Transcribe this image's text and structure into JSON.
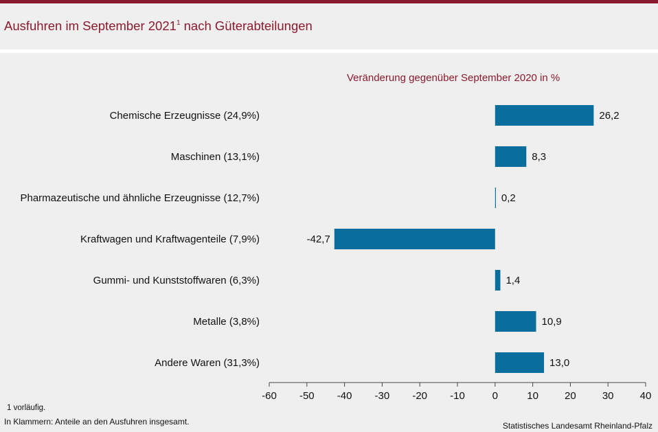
{
  "header": {
    "title": "Ausfuhren im September 2021",
    "title_footnote_mark": "1",
    "title_suffix": "nach Güterabteilungen"
  },
  "colors": {
    "accent": "#8b1a2e",
    "bar": "#0a6e9c"
  },
  "chart_data": {
    "type": "bar",
    "orientation": "horizontal",
    "subtitle": "Veränderung  gegenüber  September 2020 in %",
    "categories": [
      "Chemische Erzeugnisse (24,9%)",
      "Maschinen (13,1%)",
      "Pharmazeutische und ähnliche Erzeugnisse (12,7%)",
      "Kraftwagen und Kraftwagenteile (7,9%)",
      "Gummi- und Kunststoffwaren (6,3%)",
      "Metalle (3,8%)",
      "Andere Waren (31,3%)"
    ],
    "values": [
      26.2,
      8.3,
      0.2,
      -42.7,
      1.4,
      10.9,
      13.0
    ],
    "value_labels": [
      "26,2",
      "8,3",
      "0,2",
      "-42,7",
      "1,4",
      "10,9",
      "13,0"
    ],
    "xlim": [
      -60,
      40
    ],
    "xticks": [
      -60,
      -50,
      -40,
      -30,
      -20,
      -10,
      0,
      10,
      20,
      30,
      40
    ],
    "grid": false
  },
  "footnotes": {
    "note1": "1 vorläufig.",
    "note2": "In Klammern:  Anteile an den Ausfuhren  insgesamt."
  },
  "source": "Statistisches Landesamt  Rheinland-Pfalz"
}
